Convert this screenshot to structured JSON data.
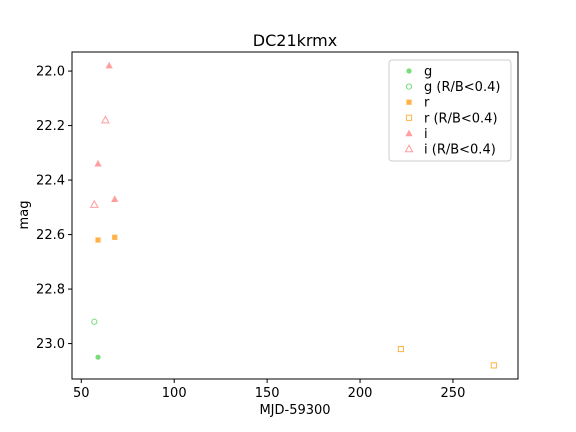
{
  "chart_data": {
    "type": "scatter",
    "title": "DC21krmx",
    "xlabel": "MJD-59300",
    "ylabel": "mag",
    "xlim": [
      45,
      285
    ],
    "ylim": [
      23.13,
      21.93
    ],
    "y_inverted": true,
    "x_ticks": [
      50,
      100,
      150,
      200,
      250
    ],
    "y_ticks": [
      22.0,
      22.2,
      22.4,
      22.6,
      22.8,
      23.0
    ],
    "x_tick_labels": [
      "50",
      "100",
      "150",
      "200",
      "250"
    ],
    "y_tick_labels": [
      "22.0",
      "22.2",
      "22.4",
      "22.6",
      "22.8",
      "23.0"
    ],
    "legend_position": "top-right",
    "series": [
      {
        "name": "g",
        "color": "#77dd77",
        "marker": "circle",
        "filled": true,
        "points": [
          {
            "x": 59,
            "y": 23.05
          }
        ]
      },
      {
        "name": "g (R/B<0.4)",
        "color": "#77dd77",
        "marker": "circle",
        "filled": false,
        "points": [
          {
            "x": 57,
            "y": 22.92
          }
        ]
      },
      {
        "name": "r",
        "color": "#ffb347",
        "marker": "square",
        "filled": true,
        "points": [
          {
            "x": 59,
            "y": 22.62
          },
          {
            "x": 68,
            "y": 22.61
          }
        ]
      },
      {
        "name": "r (R/B<0.4)",
        "color": "#ffb347",
        "marker": "square",
        "filled": false,
        "points": [
          {
            "x": 222,
            "y": 23.02
          },
          {
            "x": 272,
            "y": 23.08
          }
        ]
      },
      {
        "name": "i",
        "color": "#ff9e9e",
        "marker": "triangle",
        "filled": true,
        "points": [
          {
            "x": 65,
            "y": 21.98
          },
          {
            "x": 59,
            "y": 22.34
          },
          {
            "x": 68,
            "y": 22.47
          }
        ]
      },
      {
        "name": "i (R/B<0.4)",
        "color": "#ff9e9e",
        "marker": "triangle",
        "filled": false,
        "points": [
          {
            "x": 63,
            "y": 22.18
          },
          {
            "x": 57,
            "y": 22.49
          }
        ]
      }
    ]
  }
}
